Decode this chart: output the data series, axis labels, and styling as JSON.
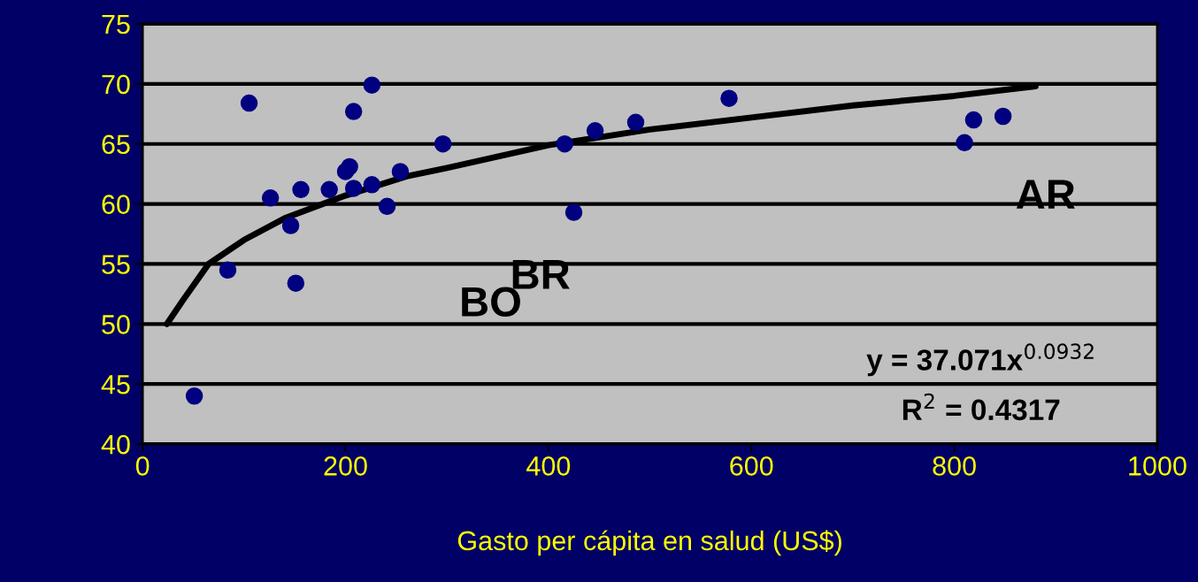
{
  "chart_data": {
    "type": "scatter",
    "xlabel": "Gasto per cápita en salud (US$)",
    "xlim": [
      0,
      1000
    ],
    "xticks": [
      0,
      200,
      400,
      600,
      800,
      1000
    ],
    "ylim": [
      40,
      75
    ],
    "yticks": [
      40,
      45,
      50,
      55,
      60,
      65,
      70,
      75
    ],
    "grid": "y",
    "legend": false,
    "series": [
      {
        "marker": "circle",
        "color": "#000080",
        "x": [
          51,
          84,
          105,
          126,
          146,
          151,
          156,
          184,
          200,
          204,
          208,
          208,
          226,
          226,
          241,
          254,
          296,
          416,
          425,
          446,
          486,
          578,
          810,
          819,
          848
        ],
        "values": [
          44.0,
          54.5,
          68.4,
          60.5,
          58.2,
          53.4,
          61.2,
          61.2,
          62.7,
          63.1,
          61.3,
          67.7,
          69.9,
          61.6,
          59.8,
          62.7,
          65.0,
          65.0,
          59.3,
          66.1,
          66.8,
          68.8,
          65.1,
          67.0,
          67.3
        ]
      },
      {
        "type": "line",
        "color": "#000000",
        "line_style": "solid",
        "x": [
          24,
          40,
          65,
          100,
          140,
          200,
          260,
          300,
          400,
          500,
          600,
          700,
          800,
          880
        ],
        "values": [
          50.0,
          52.0,
          55.0,
          57.0,
          58.8,
          60.7,
          62.3,
          63.0,
          64.9,
          66.2,
          67.2,
          68.2,
          69.0,
          69.8
        ]
      }
    ],
    "annotations": [
      "BO",
      "BR",
      "AR",
      "y = 37.071x$^{0.0932}$",
      "R$^{2}$ = 0.4317"
    ]
  }
}
